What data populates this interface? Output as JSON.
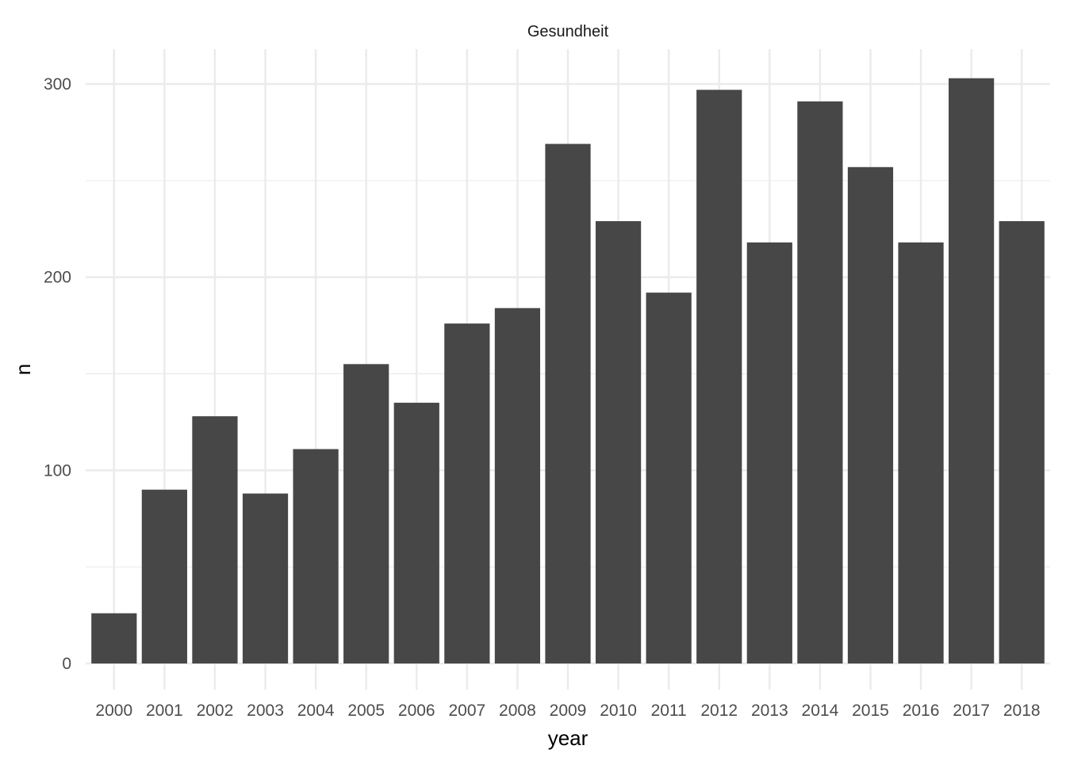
{
  "chart_data": {
    "type": "bar",
    "facet_title": "Gesundheit",
    "xlabel": "year",
    "ylabel": "n",
    "categories": [
      "2000",
      "2001",
      "2002",
      "2003",
      "2004",
      "2005",
      "2006",
      "2007",
      "2008",
      "2009",
      "2010",
      "2011",
      "2012",
      "2013",
      "2014",
      "2015",
      "2016",
      "2017",
      "2018"
    ],
    "values": [
      26,
      90,
      128,
      88,
      111,
      155,
      135,
      176,
      184,
      269,
      229,
      192,
      297,
      218,
      291,
      257,
      218,
      303,
      229
    ],
    "ylim": [
      0,
      310
    ],
    "yticks": [
      0,
      100,
      200,
      300
    ],
    "grid": true,
    "bar_color": "#474747",
    "grid_color": "#ebebeb",
    "legend": "none"
  }
}
